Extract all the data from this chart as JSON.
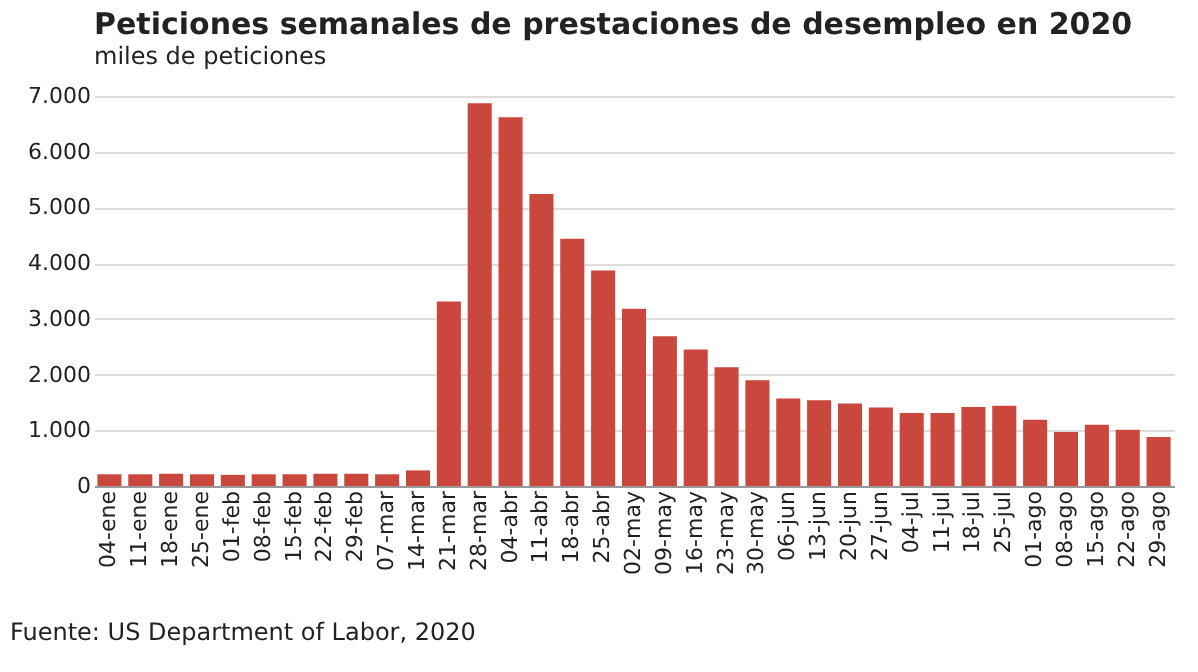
{
  "chart_data": {
    "type": "bar",
    "title": "Peticiones semanales de prestaciones de desempleo en 2020",
    "ylabel": "miles de peticiones",
    "categories": [
      "04-ene",
      "11-ene",
      "18-ene",
      "25-ene",
      "01-feb",
      "08-feb",
      "15-feb",
      "22-feb",
      "29-feb",
      "07-mar",
      "14-mar",
      "21-mar",
      "28-mar",
      "04-abr",
      "11-abr",
      "18-abr",
      "25-abr",
      "02-may",
      "09-may",
      "16-may",
      "23-may",
      "30-may",
      "06-jun",
      "13-jun",
      "20-jun",
      "27-jun",
      "04-jul",
      "11-jul",
      "18-jul",
      "25-jul",
      "01-ago",
      "08-ago",
      "15-ago",
      "22-ago",
      "29-ago"
    ],
    "values": [
      210,
      210,
      220,
      210,
      200,
      210,
      210,
      220,
      220,
      210,
      280,
      3310,
      6870,
      6620,
      5240,
      4440,
      3870,
      3180,
      2690,
      2450,
      2130,
      1900,
      1570,
      1540,
      1480,
      1410,
      1310,
      1310,
      1420,
      1440,
      1190,
      970,
      1100,
      1010,
      880
    ],
    "color": "#c9473d",
    "ylim": [
      0,
      7000
    ],
    "yticks": [
      0,
      {
        "value": 1000,
        "label": "1.000"
      },
      {
        "value": 2000,
        "label": "2.000"
      },
      {
        "value": 3000,
        "label": "3.000"
      },
      {
        "value": 4000,
        "label": "4.000"
      },
      {
        "value": 5000,
        "label": "5.000"
      },
      {
        "value": 6000,
        "label": "6.000"
      },
      {
        "value": 7000,
        "label": "7.000"
      }
    ],
    "grid": "y",
    "annotations": [
      "Fuente: US Department of Labor, 2020"
    ]
  }
}
